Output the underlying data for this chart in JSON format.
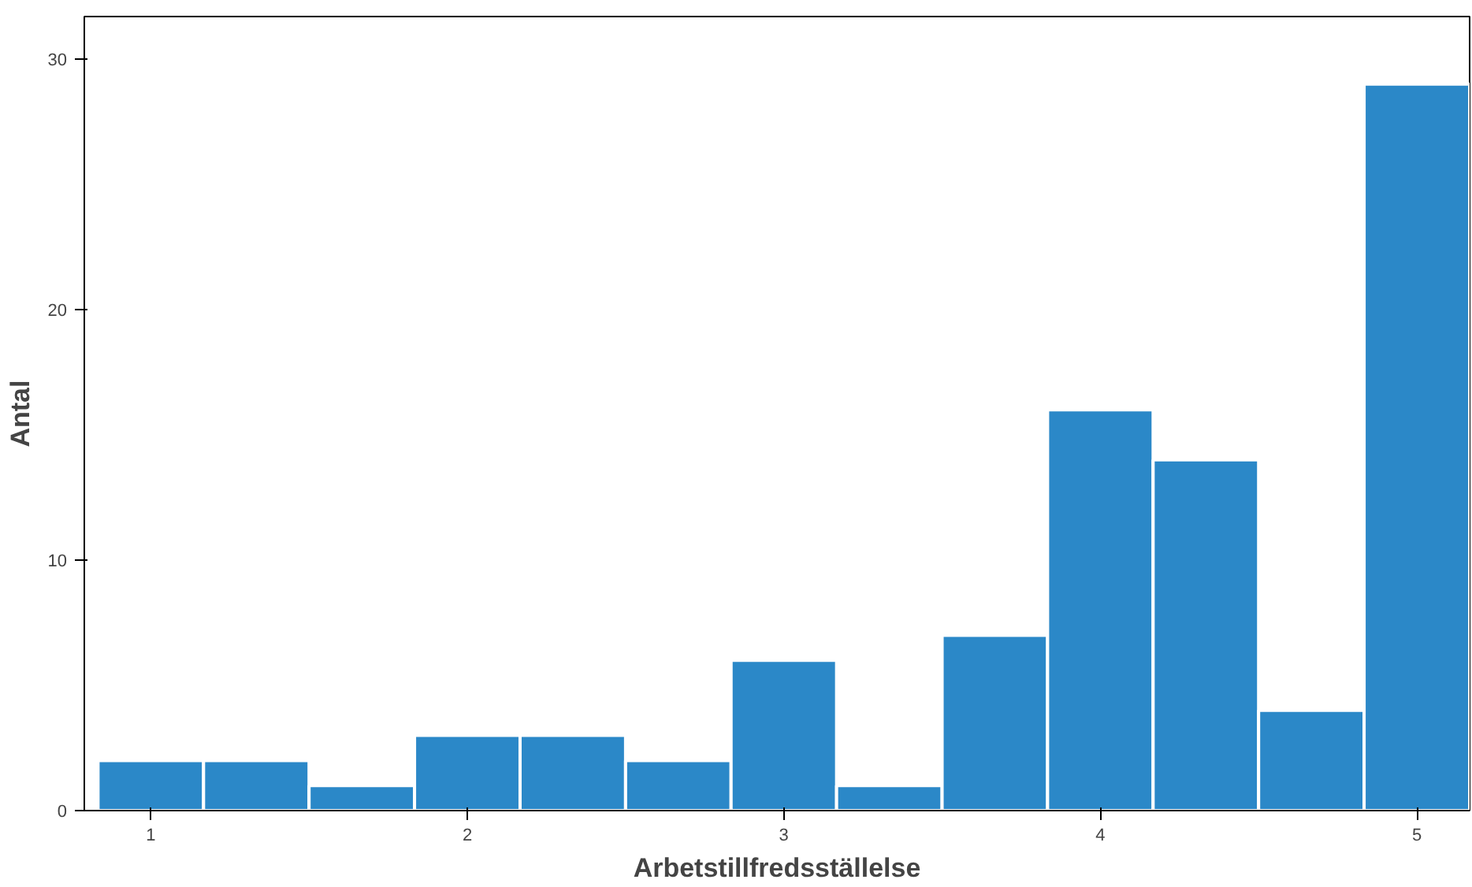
{
  "chart_data": {
    "type": "histogram",
    "xlabel": "Arbetstillfredsställelse",
    "ylabel": "Antal",
    "bins": [
      0.8333,
      1.1667,
      1.5,
      1.8333,
      2.1667,
      2.5,
      2.8333,
      3.1667,
      3.5,
      3.8333,
      4.1667,
      4.5,
      4.8333,
      5.1667
    ],
    "values": [
      2,
      2,
      1,
      3,
      3,
      2,
      6,
      1,
      7,
      16,
      14,
      4,
      29
    ],
    "color": "#2b88c8",
    "xlim": [
      0.79,
      5.1667
    ],
    "ylim": [
      0,
      31.7
    ],
    "xticks": [
      1,
      2,
      3,
      4,
      5
    ],
    "yticks": [
      0,
      10,
      20,
      30
    ],
    "grid": false
  }
}
